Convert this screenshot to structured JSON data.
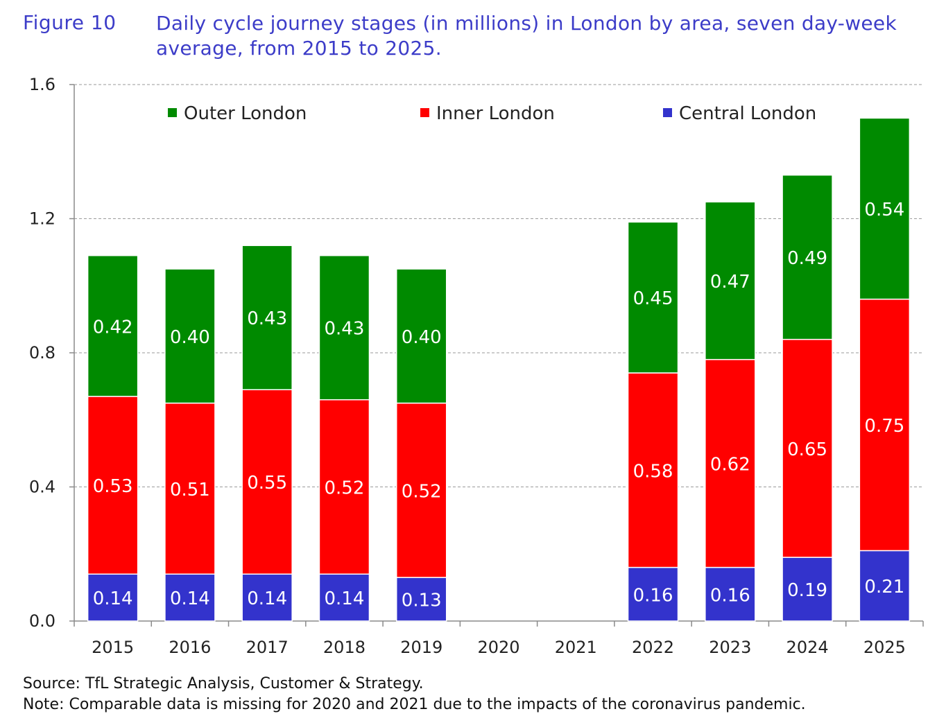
{
  "figure": {
    "label": "Figure 10",
    "title": "Daily cycle journey stages (in millions) in London by area, seven day-week average, from 2015 to 2025."
  },
  "footer": {
    "source": "Source: TfL Strategic Analysis, Customer & Strategy.",
    "note": "Note: Comparable data is missing for 2020 and 2021 due to the impacts of the coronavirus pandemic."
  },
  "chart_data": {
    "type": "bar",
    "stacked": true,
    "title": "Daily cycle journey stages (in millions) in London by area, seven day-week average, from 2015 to 2025.",
    "xlabel": "",
    "ylabel": "",
    "ylim": [
      0,
      1.6
    ],
    "yticks": [
      "0.0",
      "0.4",
      "0.8",
      "1.2",
      "1.6"
    ],
    "ytick_values": [
      0,
      0.4,
      0.8,
      1.2,
      1.6
    ],
    "grid": true,
    "legend_position": "top",
    "categories": [
      "2015",
      "2016",
      "2017",
      "2018",
      "2019",
      "2020",
      "2021",
      "2022",
      "2023",
      "2024",
      "2025"
    ],
    "series": [
      {
        "name": "Central London",
        "color": "#3333cc",
        "values": [
          0.14,
          0.14,
          0.14,
          0.14,
          0.13,
          null,
          null,
          0.16,
          0.16,
          0.19,
          0.21
        ],
        "labels": [
          "0.14",
          "0.14",
          "0.14",
          "0.14",
          "0.13",
          "",
          "",
          "0.16",
          "0.16",
          "0.19",
          "0.21"
        ]
      },
      {
        "name": "Inner London",
        "color": "#ff0000",
        "values": [
          0.53,
          0.51,
          0.55,
          0.52,
          0.52,
          null,
          null,
          0.58,
          0.62,
          0.65,
          0.75
        ],
        "labels": [
          "0.53",
          "0.51",
          "0.55",
          "0.52",
          "0.52",
          "",
          "",
          "0.58",
          "0.62",
          "0.65",
          "0.75"
        ]
      },
      {
        "name": "Outer London",
        "color": "#008a00",
        "values": [
          0.42,
          0.4,
          0.43,
          0.43,
          0.4,
          null,
          null,
          0.45,
          0.47,
          0.49,
          0.54
        ],
        "labels": [
          "0.42",
          "0.40",
          "0.43",
          "0.43",
          "0.40",
          "",
          "",
          "0.45",
          "0.47",
          "0.49",
          "0.54"
        ]
      }
    ],
    "legend_order": [
      "Outer London",
      "Inner London",
      "Central London"
    ]
  }
}
